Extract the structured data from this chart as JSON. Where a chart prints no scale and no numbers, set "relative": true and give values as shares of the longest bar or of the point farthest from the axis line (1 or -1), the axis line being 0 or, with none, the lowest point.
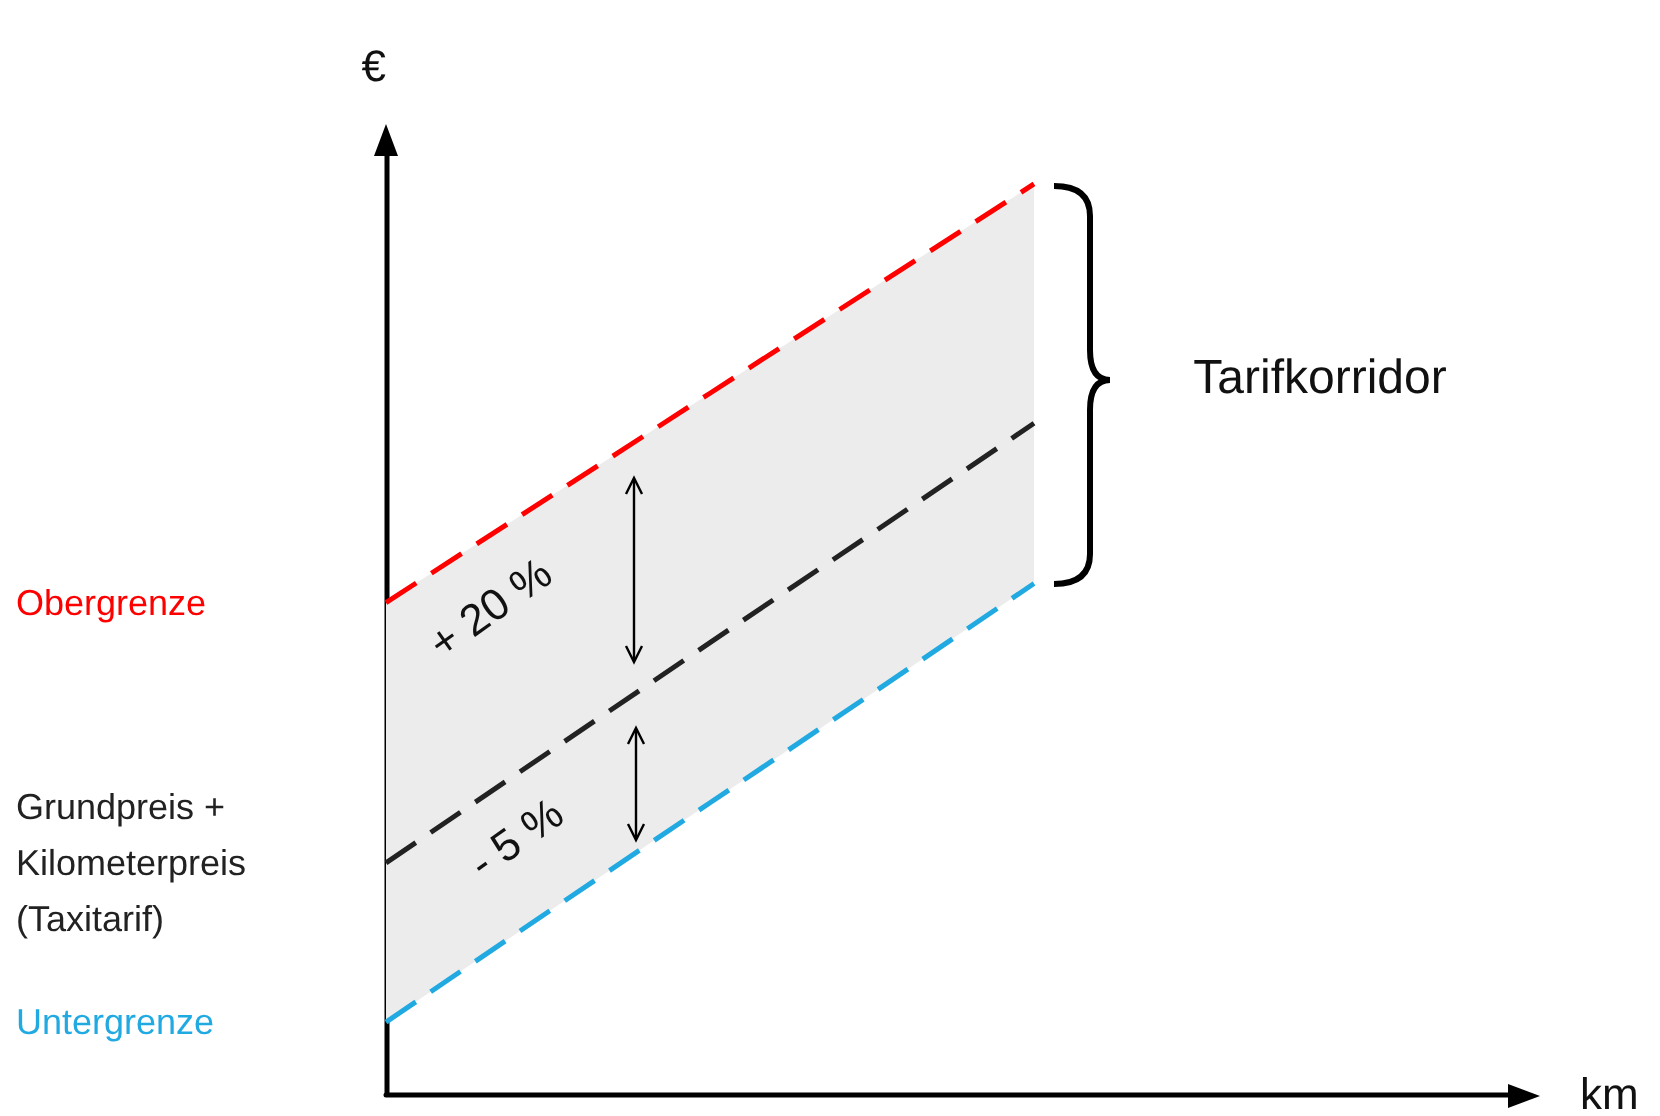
{
  "chart_data": {
    "type": "line",
    "relative": true,
    "ylabel": "€",
    "xlabel": "km",
    "categories": [
      null,
      null,
      null,
      null,
      null,
      null,
      null,
      null
    ],
    "line_style": "dashed",
    "marker": "none",
    "series": [
      {
        "name": "Obergrenze",
        "color": "#ff0000",
        "values": [
          0.54,
          0.655,
          0.77,
          0.885,
          1,
          null,
          null,
          null
        ]
      },
      {
        "name": "Grundpreis + Kilometerpreis (Taxitarif)",
        "color": "#222222",
        "values": [
          0.254,
          0.375,
          0.496,
          0.616,
          0.737,
          null,
          null,
          null
        ],
        "lower": [
          0.079,
          0.2,
          0.32,
          0.44,
          0.561,
          null,
          null,
          null
        ],
        "upper": [
          0.54,
          0.655,
          0.77,
          0.885,
          1,
          null,
          null,
          null
        ]
      },
      {
        "name": "Untergrenze",
        "color": "#21a9e1",
        "values": [
          0.079,
          0.2,
          0.32,
          0.44,
          0.561,
          null,
          null,
          null
        ]
      }
    ],
    "annotations": [
      "+ 20 %",
      "- 5 %",
      "Tarifkorridor"
    ]
  }
}
